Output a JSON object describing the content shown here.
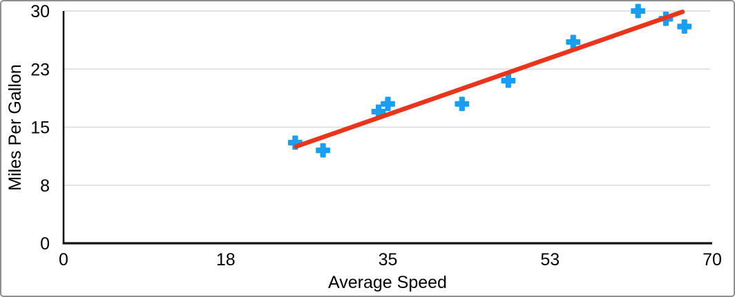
{
  "chart_data": {
    "type": "scatter",
    "title": "",
    "xlabel": "Average Speed",
    "ylabel": "Miles Per Gallon",
    "xlim": [
      0,
      70
    ],
    "ylim": [
      0,
      30
    ],
    "grid": "horizontal-only",
    "legend": "none",
    "x_ticks": {
      "values": [
        0,
        17.5,
        35,
        52.5,
        70
      ],
      "labels": [
        "0",
        "18",
        "35",
        "53",
        "70"
      ]
    },
    "y_ticks": {
      "values": [
        0,
        7.5,
        15,
        22.5,
        30
      ],
      "labels": [
        "0",
        "8",
        "15",
        "23",
        "30"
      ]
    },
    "series": [
      {
        "name": "Miles Per Gallon",
        "marker": "plus",
        "color": "#1c9ef0",
        "points": [
          [
            25,
            13
          ],
          [
            28,
            12
          ],
          [
            34,
            17
          ],
          [
            35,
            18
          ],
          [
            43,
            18
          ],
          [
            48,
            21
          ],
          [
            55,
            26
          ],
          [
            62,
            30
          ],
          [
            65,
            29
          ],
          [
            67,
            28
          ]
        ]
      }
    ],
    "trendline": {
      "type": "linear",
      "color": "#e8351b",
      "x_start": 25.1,
      "y_start": 12.5,
      "x_end": 66.8,
      "y_end": 29.9
    }
  },
  "colors": {
    "marker_blue": "#1c9ef0",
    "trend_red": "#e8351b",
    "gridline": "#d9d9d9",
    "axis": "#141414",
    "text": "#000000",
    "frame_border": "#8e8e8e",
    "background": "#ffffff"
  }
}
